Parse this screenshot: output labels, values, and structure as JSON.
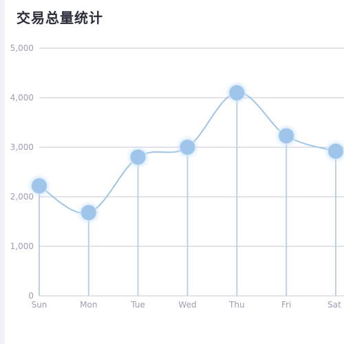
{
  "title": "交易总量统计",
  "colors": {
    "line": "#9ec5e6",
    "point": "#9fc6ea",
    "point_glow": "#cfe4fb",
    "grid": "#c5c8d6",
    "stem": "#b8d2ea",
    "tick_text": "#9aa0b4",
    "title_text": "#2b2d3b"
  },
  "chart_data": {
    "type": "line",
    "smooth": true,
    "categories": [
      "Sun",
      "Mon",
      "Tue",
      "Wed",
      "Thu",
      "Fri",
      "Sat"
    ],
    "values": [
      2220,
      1680,
      2800,
      3000,
      4100,
      3230,
      2920
    ],
    "ylim": [
      0,
      5000
    ],
    "yticks": [
      0,
      1000,
      2000,
      3000,
      4000,
      5000
    ],
    "ytick_labels": [
      "0",
      "1,000",
      "2,000",
      "3,000",
      "4,000",
      "5,000"
    ],
    "grid": true,
    "drop_lines": true
  }
}
